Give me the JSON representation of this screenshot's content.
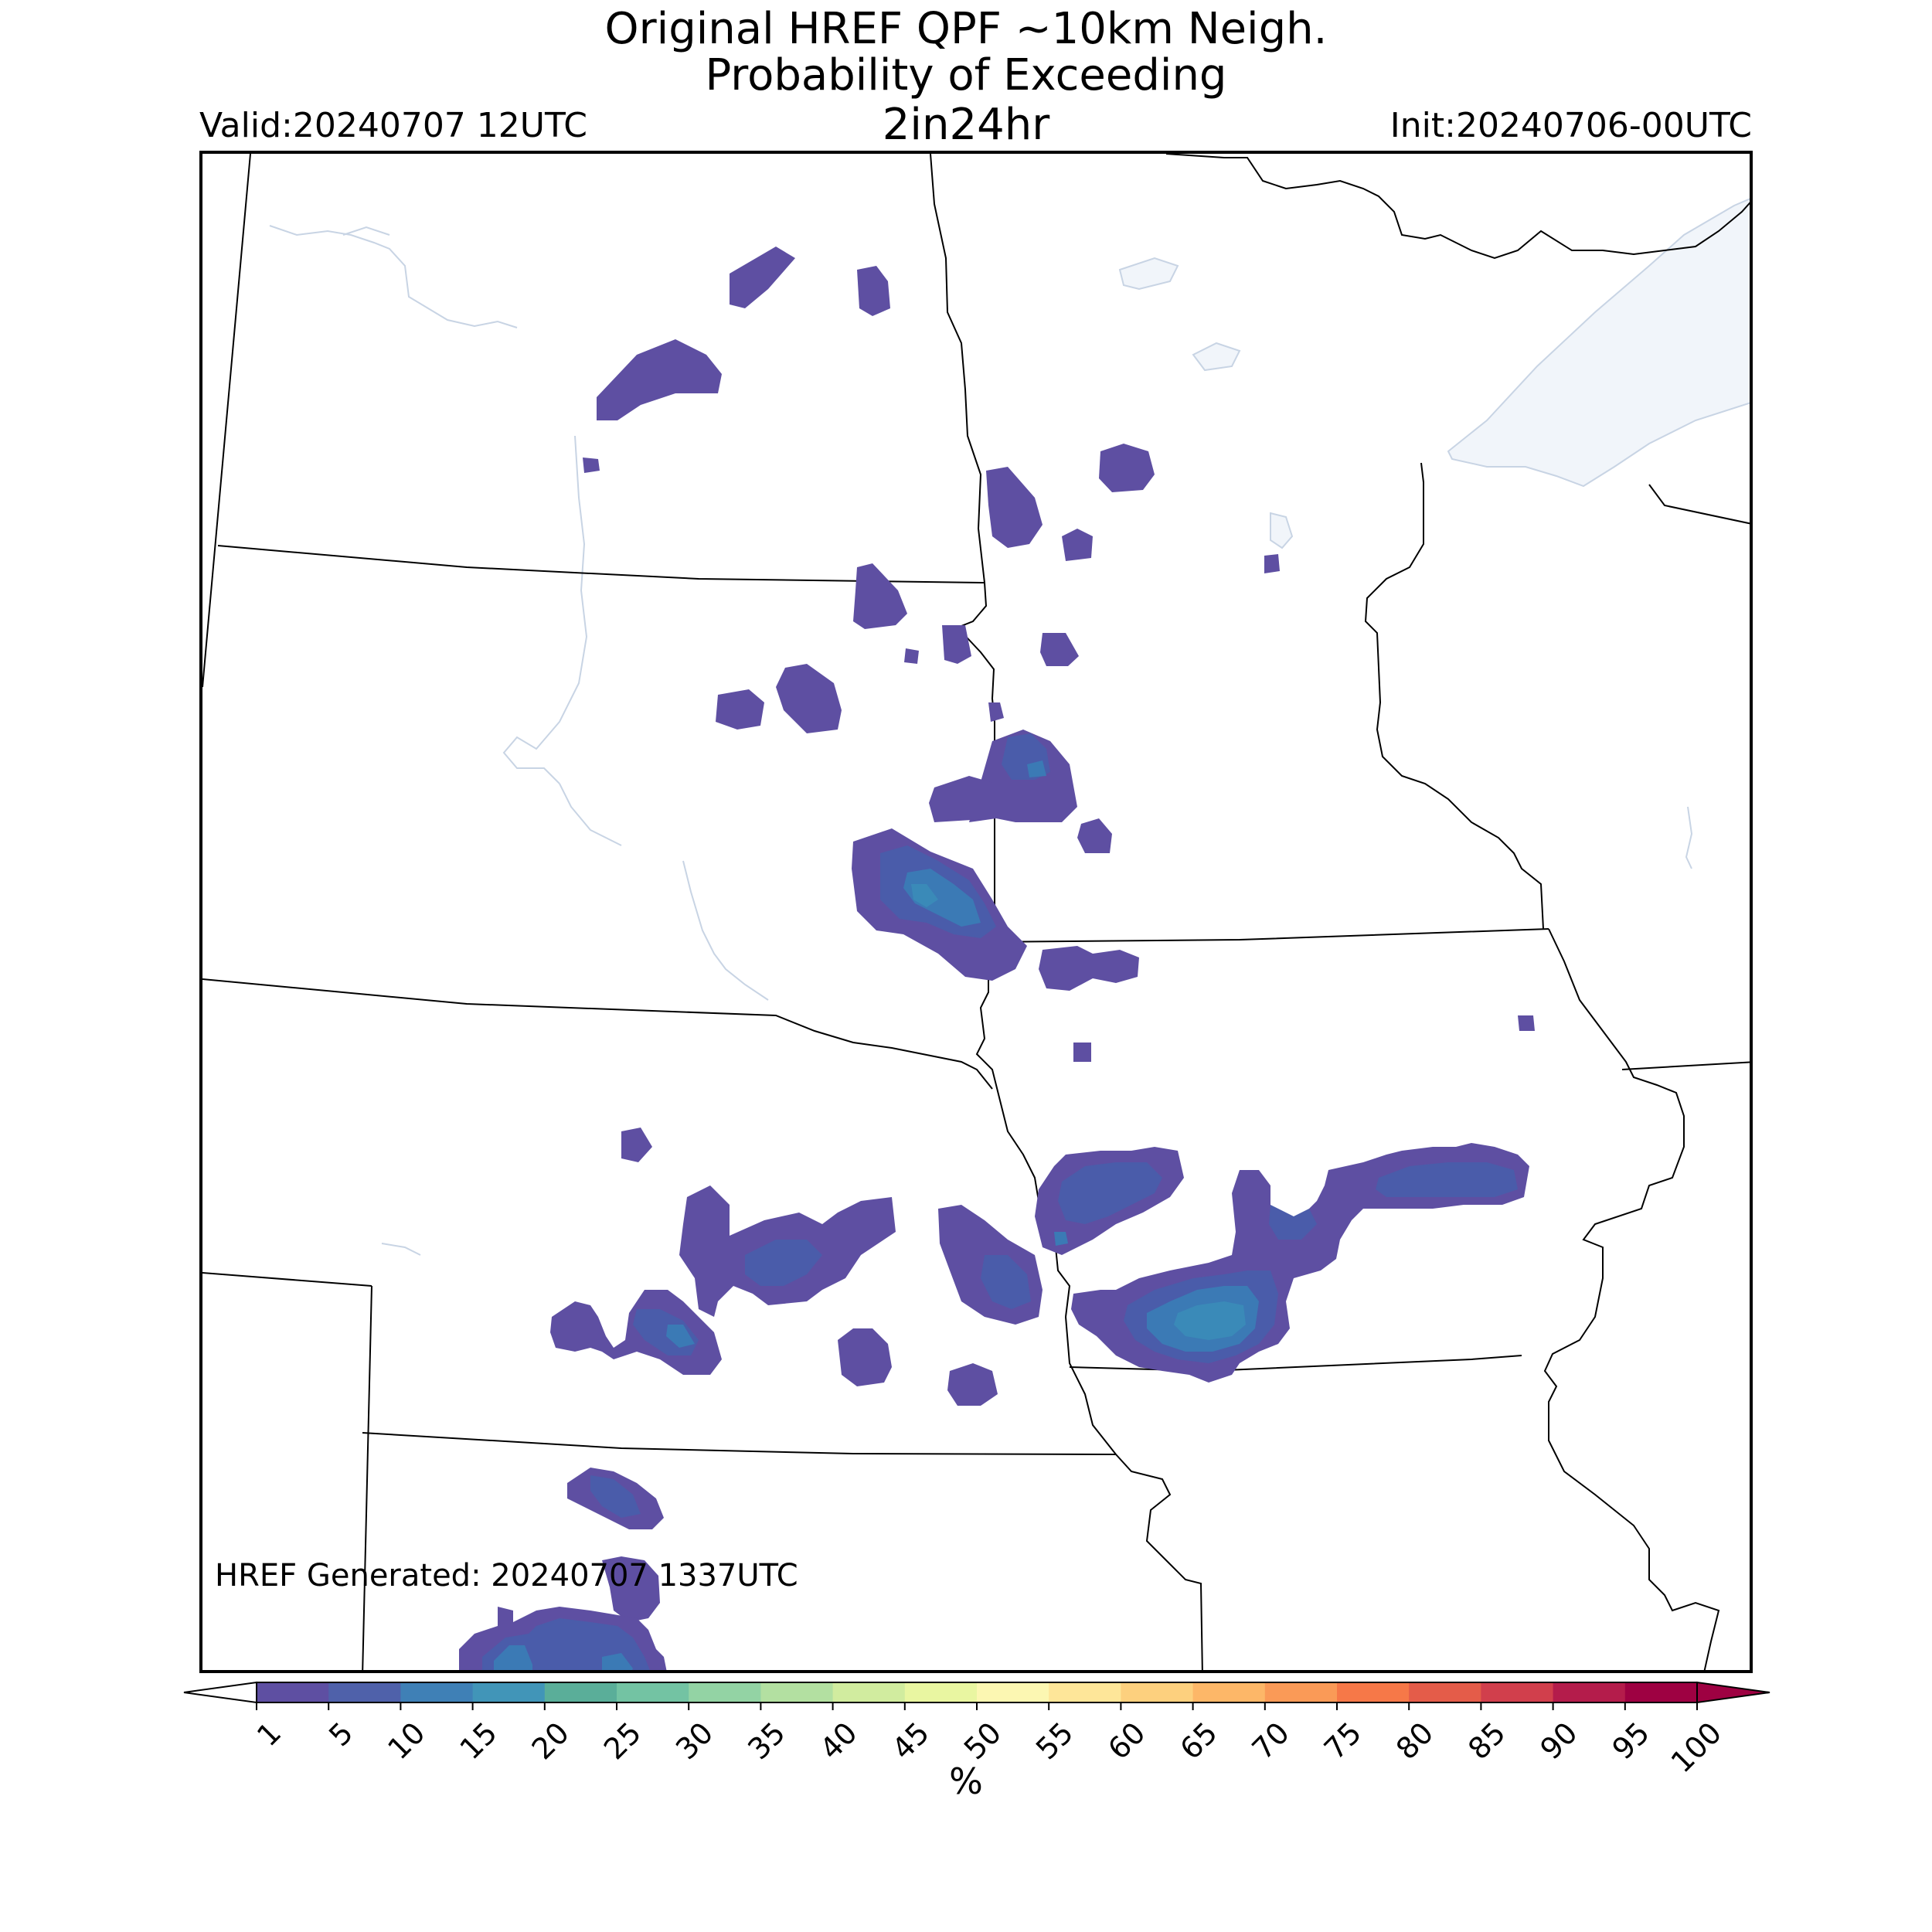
{
  "header": {
    "title_line1": "Original HREF QPF ~10km Neigh.",
    "title_line2": "Probability of Exceeding",
    "title_line3": "2in24hr",
    "valid": "Valid:20240707 12UTC",
    "init": "Init:20240706-00UTC"
  },
  "footer_note": "HREF Generated: 20240707 1337UTC",
  "colorbar": {
    "label": "%",
    "ticks": [
      "1",
      "5",
      "10",
      "15",
      "20",
      "25",
      "30",
      "35",
      "40",
      "45",
      "50",
      "55",
      "60",
      "65",
      "70",
      "75",
      "80",
      "85",
      "90",
      "95",
      "100"
    ],
    "colors": [
      "#5e4fa2",
      "#4f61aa",
      "#3f80b6",
      "#4195b8",
      "#5aae99",
      "#73c3a3",
      "#93d3a4",
      "#b3e0a1",
      "#d1ec9f",
      "#e9f6a1",
      "#fcf7b2",
      "#fee699",
      "#fdd07e",
      "#fdb768",
      "#fa9a57",
      "#f67848",
      "#e45c49",
      "#d13f4c",
      "#b41c4b",
      "#9e0142"
    ]
  },
  "map": {
    "probability_colors": {
      "p1": "#5e4fa2",
      "p5": "#4a5caa",
      "p10": "#3b7ab5",
      "p15": "#3a8ab8"
    },
    "water_color": "#f1f5fa"
  }
}
